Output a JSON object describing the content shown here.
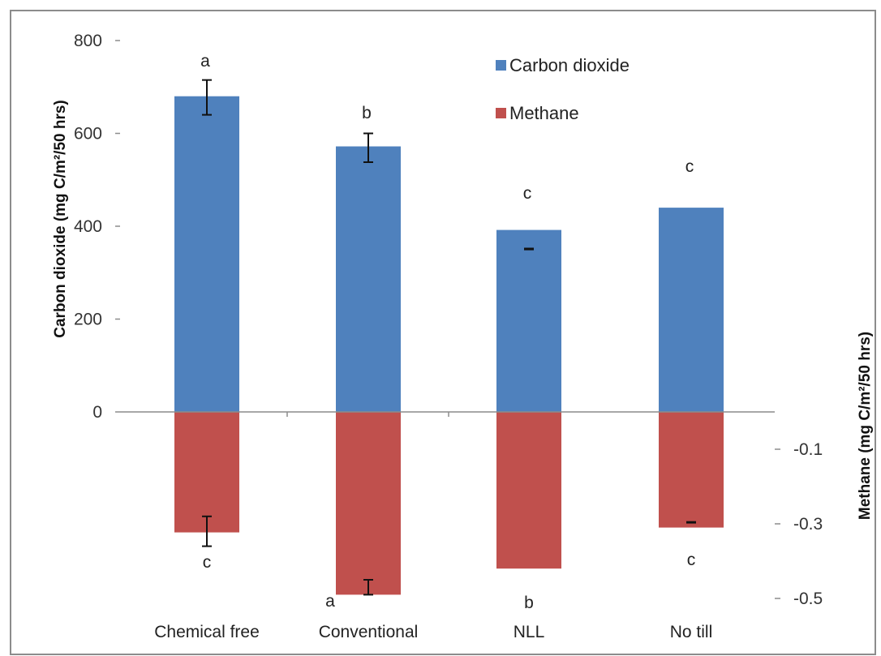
{
  "chart_data": {
    "type": "bar",
    "categories": [
      "Chemical free",
      "Conventional",
      "NLL",
      "No till"
    ],
    "series": [
      {
        "name": "Carbon dioxide",
        "axis": "left",
        "color": "#4f81bd",
        "values": [
          680,
          572,
          392,
          440
        ],
        "error": [
          null,
          [
            538,
            600
          ],
          [
            350,
            352
          ],
          null
        ],
        "error_left": [
          [
            640,
            715
          ],
          null,
          null,
          null
        ],
        "letters": [
          "a",
          "b",
          "c",
          "c"
        ]
      },
      {
        "name": "Methane",
        "axis": "right",
        "color": "#c0504d",
        "values": [
          -0.323,
          -0.49,
          -0.42,
          -0.31
        ],
        "error": [
          [
            -0.28,
            -0.36
          ],
          [
            -0.45,
            -0.49
          ],
          null,
          [
            -0.295,
            -0.297
          ]
        ],
        "letters": [
          "c",
          "a",
          "b",
          "c"
        ]
      }
    ],
    "y_left": {
      "label": "Carbon dioxide (mg C/m²/50 hrs)",
      "ylim": [
        -650,
        800
      ],
      "ticks": [
        "800",
        "600",
        "400",
        "200",
        "0"
      ]
    },
    "y_right": {
      "label": "Methane (mg C/m²/50 hrs)",
      "ylim": [
        -0.5,
        0
      ],
      "ticks": [
        "-0.1",
        "-0.3",
        "-0.5"
      ]
    },
    "legend": {
      "position": "top-right",
      "entries": [
        "Carbon dioxide",
        "Methane"
      ]
    },
    "grid": false
  }
}
